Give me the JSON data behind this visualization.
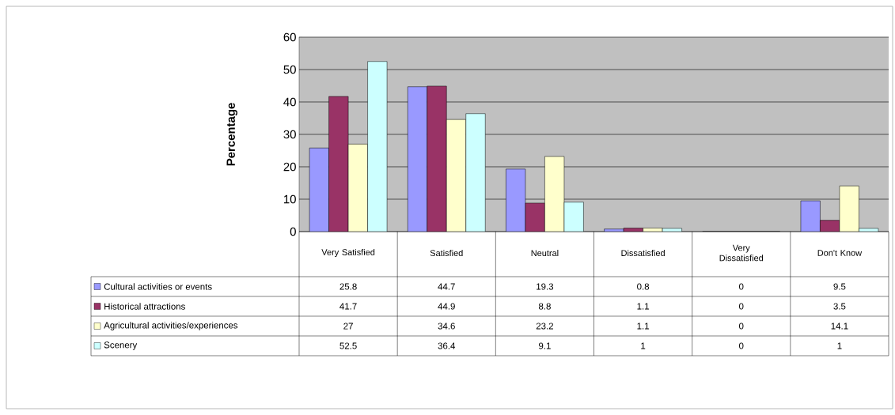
{
  "chart_data": {
    "type": "bar",
    "ylabel": "Percentage",
    "categories": [
      "Very Satisfied",
      "Satisfied",
      "Neutral",
      "Dissatisfied",
      "Very Dissatisfied",
      "Don't Know"
    ],
    "series": [
      {
        "name": "Cultural activities or events",
        "color": "#9999ff",
        "values": [
          25.8,
          44.7,
          19.3,
          0.8,
          0,
          9.5
        ]
      },
      {
        "name": "Historical attractions",
        "color": "#993366",
        "values": [
          41.7,
          44.9,
          8.8,
          1.1,
          0,
          3.5
        ]
      },
      {
        "name": "Agricultural activities/experiences",
        "color": "#ffffcc",
        "values": [
          27,
          34.6,
          23.2,
          1.1,
          0,
          14.1
        ]
      },
      {
        "name": "Scenery",
        "color": "#ccffff",
        "values": [
          52.5,
          36.4,
          9.1,
          1,
          0,
          1
        ]
      }
    ],
    "ylim": [
      0,
      60
    ],
    "yticks": [
      0,
      10,
      20,
      30,
      40,
      50,
      60
    ],
    "grid": "y",
    "legend": "bottom",
    "data_labels": true
  }
}
